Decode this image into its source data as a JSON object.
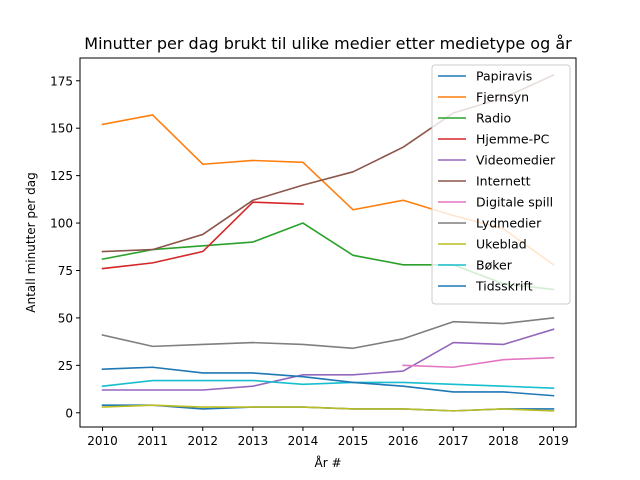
{
  "chart_data": {
    "type": "line",
    "title": "Minutter per dag brukt til ulike medier etter medietype og år",
    "xlabel": "År #",
    "ylabel": "Antall minutter per dag",
    "x": [
      2010,
      2011,
      2012,
      2013,
      2014,
      2015,
      2016,
      2017,
      2018,
      2019
    ],
    "xlim": [
      2009.55,
      2019.45
    ],
    "ylim": [
      -7.5,
      187
    ],
    "yticks": [
      0,
      25,
      50,
      75,
      100,
      125,
      150,
      175
    ],
    "grid": false,
    "legend_position": "top-right",
    "series": [
      {
        "name": "Papiravis",
        "color": "#1f77b4",
        "values": [
          4,
          4,
          2,
          3,
          3,
          2,
          2,
          1,
          2,
          2
        ]
      },
      {
        "name": "Fjernsyn",
        "color": "#ff7f0e",
        "values": [
          152,
          157,
          131,
          133,
          132,
          107,
          112,
          104,
          97,
          78
        ]
      },
      {
        "name": "Radio",
        "color": "#2ca02c",
        "values": [
          81,
          86,
          88,
          90,
          100,
          83,
          78,
          78,
          68,
          65
        ]
      },
      {
        "name": "Hjemme-PC",
        "color": "#d62728",
        "values": [
          76,
          79,
          85,
          111,
          110,
          null,
          null,
          null,
          null,
          null
        ]
      },
      {
        "name": "Videomedier",
        "color": "#9467bd",
        "values": [
          12,
          12,
          12,
          14,
          20,
          20,
          22,
          37,
          36,
          44
        ]
      },
      {
        "name": "Internett",
        "color": "#8c564b",
        "values": [
          85,
          86,
          94,
          112,
          120,
          127,
          140,
          158,
          166,
          178
        ]
      },
      {
        "name": "Digitale spill",
        "color": "#e377c2",
        "values": [
          null,
          null,
          null,
          null,
          null,
          null,
          25,
          24,
          28,
          29
        ]
      },
      {
        "name": "Lydmedier",
        "color": "#7f7f7f",
        "values": [
          41,
          35,
          36,
          37,
          36,
          34,
          39,
          48,
          47,
          50
        ]
      },
      {
        "name": "Ukeblad",
        "color": "#bcbd22",
        "values": [
          3,
          4,
          3,
          3,
          3,
          2,
          2,
          1,
          2,
          1
        ]
      },
      {
        "name": "Bøker",
        "color": "#17becf",
        "values": [
          14,
          17,
          17,
          17,
          15,
          16,
          16,
          15,
          14,
          13
        ]
      },
      {
        "name": "Tidsskrift",
        "color": "#1f77b4",
        "values": [
          23,
          24,
          21,
          21,
          19,
          16,
          14,
          11,
          11,
          9
        ]
      }
    ]
  }
}
